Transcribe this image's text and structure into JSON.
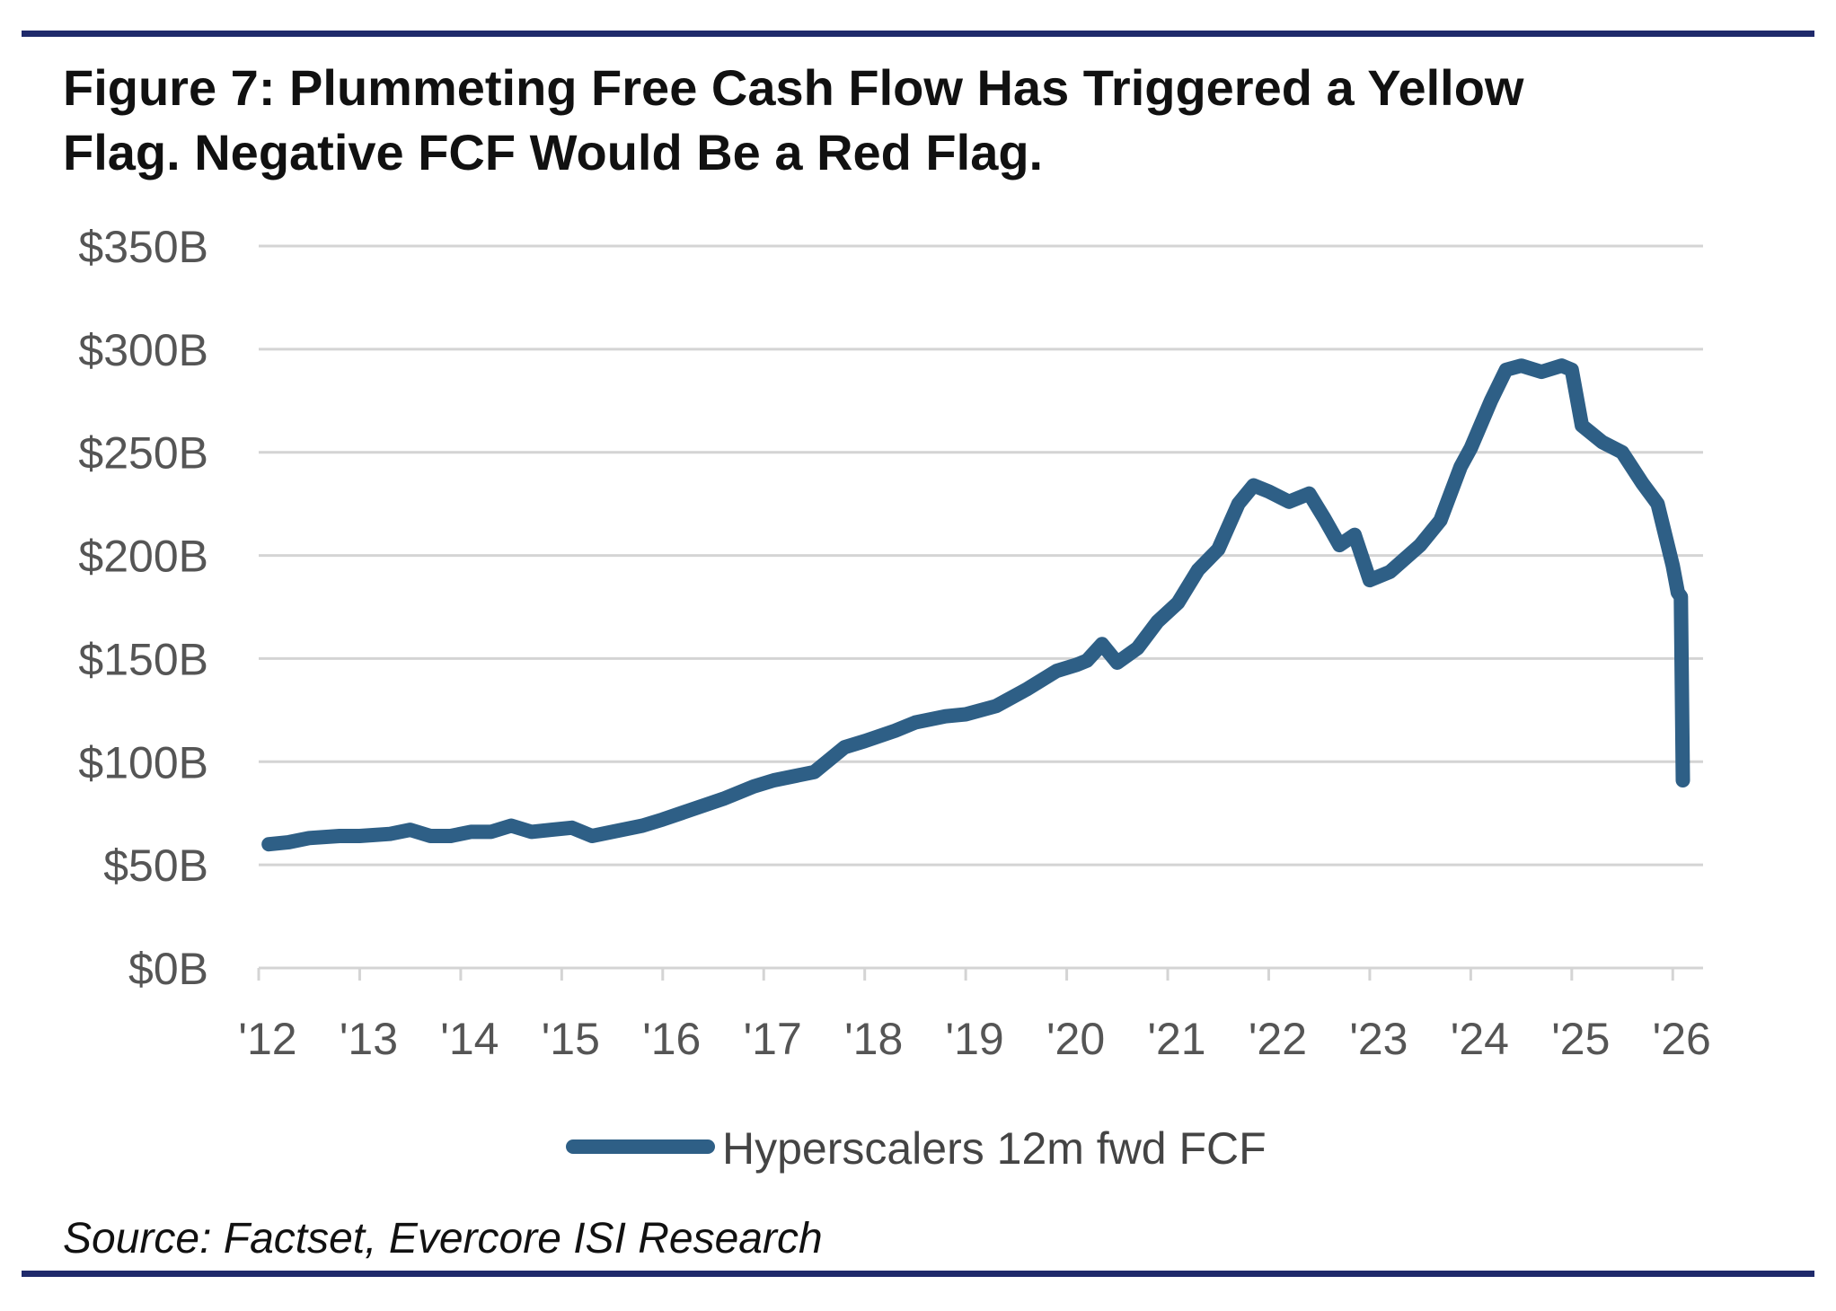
{
  "title_lines": [
    "Figure 7: Plummeting Free Cash Flow Has Triggered a Yellow",
    "Flag. Negative FCF Would Be a Red Flag."
  ],
  "source": "Source: Factset, Evercore ISI Research",
  "colors": {
    "series": "#2e5f86",
    "rule": "#1f2a6b",
    "grid": "#d4d4d4"
  },
  "chart_data": {
    "type": "line",
    "title": "Figure 7: Plummeting Free Cash Flow Has Triggered a Yellow Flag. Negative FCF Would Be a Red Flag.",
    "xlabel": "",
    "ylabel": "",
    "xlim": [
      2012,
      2026.3
    ],
    "ylim": [
      0,
      350
    ],
    "y_unit": "$B",
    "y_ticks": [
      0,
      50,
      100,
      150,
      200,
      250,
      300,
      350
    ],
    "y_tick_labels": [
      "$0B",
      "$50B",
      "$100B",
      "$150B",
      "$200B",
      "$250B",
      "$300B",
      "$350B"
    ],
    "x_ticks": [
      2012,
      2013,
      2014,
      2015,
      2016,
      2017,
      2018,
      2019,
      2020,
      2021,
      2022,
      2023,
      2024,
      2025,
      2026
    ],
    "x_tick_labels": [
      "'12",
      "'13",
      "'14",
      "'15",
      "'16",
      "'17",
      "'18",
      "'19",
      "'20",
      "'21",
      "'22",
      "'23",
      "'24",
      "'25",
      "'26"
    ],
    "grid": "horizontal",
    "legend_position": "bottom-center",
    "series": [
      {
        "name": "Hyperscalers 12m fwd FCF",
        "x": [
          2012.1,
          2012.3,
          2012.5,
          2012.8,
          2013.0,
          2013.3,
          2013.5,
          2013.7,
          2013.9,
          2014.1,
          2014.3,
          2014.5,
          2014.7,
          2014.9,
          2015.1,
          2015.3,
          2015.5,
          2015.8,
          2016.0,
          2016.3,
          2016.6,
          2016.9,
          2017.1,
          2017.5,
          2017.8,
          2018.0,
          2018.3,
          2018.5,
          2018.8,
          2019.0,
          2019.3,
          2019.6,
          2019.9,
          2020.1,
          2020.2,
          2020.35,
          2020.5,
          2020.7,
          2020.9,
          2021.1,
          2021.3,
          2021.5,
          2021.7,
          2021.85,
          2022.0,
          2022.2,
          2022.4,
          2022.55,
          2022.7,
          2022.85,
          2023.0,
          2023.2,
          2023.5,
          2023.7,
          2023.9,
          2024.0,
          2024.2,
          2024.35,
          2024.5,
          2024.7,
          2024.9,
          2025.0,
          2025.1,
          2025.3,
          2025.5,
          2025.7,
          2025.85,
          2026.0,
          2026.05,
          2026.08,
          2026.1
        ],
        "values": [
          60,
          61,
          63,
          64,
          64,
          65,
          67,
          64,
          64,
          66,
          66,
          69,
          66,
          67,
          68,
          64,
          66,
          69,
          72,
          77,
          82,
          88,
          91,
          95,
          107,
          110,
          115,
          119,
          122,
          123,
          127,
          135,
          144,
          147,
          149,
          157,
          148,
          155,
          168,
          177,
          193,
          203,
          225,
          234,
          231,
          226,
          230,
          218,
          205,
          210,
          188,
          192,
          205,
          217,
          243,
          252,
          275,
          290,
          292,
          289,
          292,
          290,
          263,
          255,
          250,
          235,
          225,
          195,
          182,
          180,
          91
        ]
      }
    ]
  },
  "legend": {
    "label": "Hyperscalers 12m fwd FCF"
  }
}
